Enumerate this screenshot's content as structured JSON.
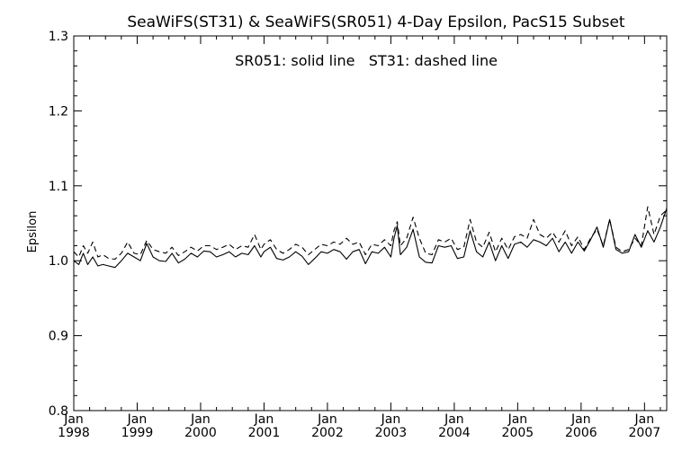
{
  "chart_data": {
    "type": "line",
    "title": "SeaWiFS(ST31) & SeaWiFS(SR051) 4-Day Epsilon, PacS15 Subset",
    "annotation": "SR051: solid line   ST31: dashed line",
    "xlabel": "",
    "ylabel": "Epsilon",
    "ylim": [
      0.8,
      1.3
    ],
    "xlim": [
      1998.0,
      2007.35
    ],
    "yticks": [
      "0.8",
      "0.9",
      "1.0",
      "1.1",
      "1.2",
      "1.3"
    ],
    "xticks": [
      {
        "value": 1998,
        "month": "Jan",
        "year": "1998"
      },
      {
        "value": 1999,
        "month": "Jan",
        "year": "1999"
      },
      {
        "value": 2000,
        "month": "Jan",
        "year": "2000"
      },
      {
        "value": 2001,
        "month": "Jan",
        "year": "2001"
      },
      {
        "value": 2002,
        "month": "Jan",
        "year": "2002"
      },
      {
        "value": 2003,
        "month": "Jan",
        "year": "2003"
      },
      {
        "value": 2004,
        "month": "Jan",
        "year": "2004"
      },
      {
        "value": 2005,
        "month": "Jan",
        "year": "2005"
      },
      {
        "value": 2006,
        "month": "Jan",
        "year": "2006"
      },
      {
        "value": 2007,
        "month": "Jan",
        "year": "2007"
      }
    ],
    "series": [
      {
        "style": "solid",
        "x": [
          1998.0,
          1998.08,
          1998.15,
          1998.22,
          1998.3,
          1998.38,
          1998.46,
          1998.55,
          1998.65,
          1998.75,
          1998.85,
          1998.95,
          1999.05,
          1999.15,
          1999.25,
          1999.35,
          1999.45,
          1999.55,
          1999.65,
          1999.75,
          1999.85,
          1999.95,
          2000.05,
          2000.15,
          2000.25,
          2000.35,
          2000.45,
          2000.55,
          2000.65,
          2000.75,
          2000.85,
          2000.95,
          2001.0,
          2001.1,
          2001.2,
          2001.3,
          2001.4,
          2001.5,
          2001.6,
          2001.7,
          2001.8,
          2001.9,
          2002.0,
          2002.1,
          2002.2,
          2002.3,
          2002.4,
          2002.5,
          2002.6,
          2002.7,
          2002.8,
          2002.9,
          2003.0,
          2003.05,
          2003.1,
          2003.15,
          2003.25,
          2003.35,
          2003.45,
          2003.55,
          2003.65,
          2003.75,
          2003.85,
          2003.95,
          2004.05,
          2004.15,
          2004.25,
          2004.35,
          2004.45,
          2004.55,
          2004.65,
          2004.75,
          2004.85,
          2004.95,
          2005.05,
          2005.15,
          2005.25,
          2005.35,
          2005.45,
          2005.55,
          2005.65,
          2005.75,
          2005.85,
          2005.95,
          2006.05,
          2006.15,
          2006.25,
          2006.35,
          2006.45,
          2006.55,
          2006.65,
          2006.75,
          2006.85,
          2006.95,
          2007.05,
          2007.15,
          2007.25,
          2007.35
        ],
        "y": [
          1.0,
          0.995,
          1.01,
          0.995,
          1.005,
          0.993,
          0.995,
          0.993,
          0.991,
          1.0,
          1.01,
          1.005,
          1.0,
          1.023,
          1.005,
          1.0,
          0.999,
          1.01,
          0.997,
          1.002,
          1.01,
          1.005,
          1.013,
          1.012,
          1.005,
          1.008,
          1.012,
          1.005,
          1.01,
          1.008,
          1.02,
          1.005,
          1.012,
          1.018,
          1.003,
          1.001,
          1.005,
          1.012,
          1.006,
          0.995,
          1.003,
          1.012,
          1.01,
          1.015,
          1.012,
          1.002,
          1.012,
          1.015,
          0.996,
          1.012,
          1.01,
          1.018,
          1.005,
          1.03,
          1.047,
          1.008,
          1.018,
          1.042,
          1.005,
          0.998,
          0.997,
          1.02,
          1.018,
          1.02,
          1.003,
          1.005,
          1.04,
          1.012,
          1.005,
          1.025,
          1.0,
          1.02,
          1.003,
          1.022,
          1.025,
          1.018,
          1.028,
          1.025,
          1.02,
          1.03,
          1.012,
          1.025,
          1.01,
          1.025,
          1.013,
          1.028,
          1.045,
          1.018,
          1.055,
          1.015,
          1.01,
          1.012,
          1.035,
          1.018,
          1.04,
          1.025,
          1.045,
          1.07
        ]
      },
      {
        "style": "dashed",
        "x": [
          1998.0,
          1998.08,
          1998.15,
          1998.22,
          1998.3,
          1998.38,
          1998.46,
          1998.55,
          1998.65,
          1998.75,
          1998.85,
          1998.95,
          1999.05,
          1999.15,
          1999.25,
          1999.35,
          1999.45,
          1999.55,
          1999.65,
          1999.75,
          1999.85,
          1999.95,
          2000.05,
          2000.15,
          2000.25,
          2000.35,
          2000.45,
          2000.55,
          2000.65,
          2000.75,
          2000.85,
          2000.95,
          2001.0,
          2001.1,
          2001.2,
          2001.3,
          2001.4,
          2001.5,
          2001.6,
          2001.7,
          2001.8,
          2001.9,
          2002.0,
          2002.1,
          2002.2,
          2002.3,
          2002.4,
          2002.5,
          2002.6,
          2002.7,
          2002.8,
          2002.9,
          2003.0,
          2003.05,
          2003.1,
          2003.15,
          2003.25,
          2003.35,
          2003.45,
          2003.55,
          2003.65,
          2003.75,
          2003.85,
          2003.95,
          2004.05,
          2004.15,
          2004.25,
          2004.35,
          2004.45,
          2004.55,
          2004.65,
          2004.75,
          2004.85,
          2004.95,
          2005.05,
          2005.15,
          2005.25,
          2005.35,
          2005.45,
          2005.55,
          2005.65,
          2005.75,
          2005.85,
          2005.95,
          2006.05,
          2006.15,
          2006.25,
          2006.35,
          2006.45,
          2006.55,
          2006.65,
          2006.75,
          2006.85,
          2006.95,
          2007.05,
          2007.15,
          2007.25,
          2007.35
        ],
        "y": [
          1.012,
          1.005,
          1.02,
          1.01,
          1.025,
          1.005,
          1.008,
          1.003,
          1.002,
          1.01,
          1.025,
          1.01,
          1.008,
          1.027,
          1.015,
          1.012,
          1.01,
          1.018,
          1.007,
          1.012,
          1.018,
          1.013,
          1.02,
          1.02,
          1.015,
          1.018,
          1.022,
          1.015,
          1.02,
          1.018,
          1.035,
          1.015,
          1.022,
          1.028,
          1.015,
          1.01,
          1.015,
          1.022,
          1.018,
          1.008,
          1.015,
          1.022,
          1.02,
          1.025,
          1.022,
          1.03,
          1.022,
          1.025,
          1.008,
          1.022,
          1.02,
          1.028,
          1.02,
          1.04,
          1.052,
          1.02,
          1.03,
          1.058,
          1.03,
          1.01,
          1.008,
          1.028,
          1.025,
          1.03,
          1.015,
          1.018,
          1.055,
          1.025,
          1.018,
          1.038,
          1.012,
          1.03,
          1.015,
          1.032,
          1.035,
          1.03,
          1.055,
          1.035,
          1.03,
          1.038,
          1.025,
          1.04,
          1.02,
          1.032,
          1.015,
          1.03,
          1.042,
          1.02,
          1.055,
          1.018,
          1.012,
          1.015,
          1.03,
          1.02,
          1.072,
          1.035,
          1.06,
          1.068
        ]
      }
    ],
    "grid": false
  }
}
